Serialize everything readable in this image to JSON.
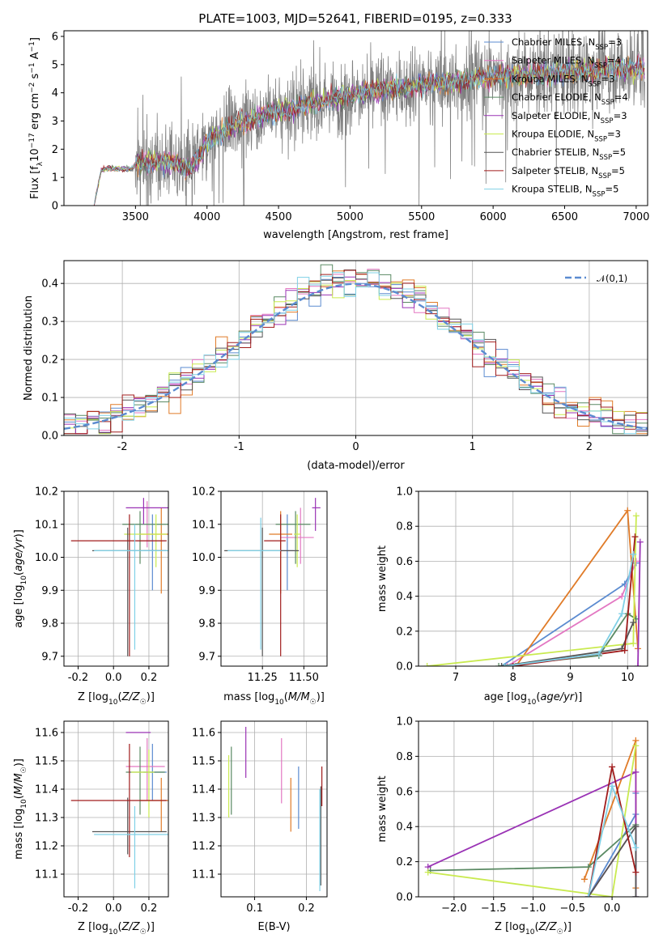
{
  "colors": {
    "c1": "#5b8bd0",
    "c2": "#e377c2",
    "c3": "#e07b28",
    "c4": "#5a8a63",
    "c5": "#9a33b5",
    "c6": "#c9ea4f",
    "c7": "#555555",
    "c8": "#a01c1c",
    "c9": "#7fd0e6",
    "grey": "#808080"
  },
  "chart_data": [
    {
      "id": "spectrum",
      "type": "line",
      "title": "PLATE=1003, MJD=52641, FIBERID=0195, z=0.333",
      "xlabel": "wavelength [Angstrom, rest frame]",
      "ylabel": "Flux [f_λ10^-17 erg cm^-2 s^-1 A^-1]",
      "xlim": [
        3000,
        7080
      ],
      "ylim": [
        0,
        6.2
      ],
      "xticks": [
        3500,
        4000,
        4500,
        5000,
        5500,
        6000,
        6500,
        7000
      ],
      "yticks": [
        0,
        1,
        2,
        3,
        4,
        5,
        6
      ],
      "grid": false,
      "legend_position": "upper right",
      "legend": [
        {
          "color": "c1",
          "text": "Chabrier MILES, N",
          "sub": "SSP",
          "rest": "=3"
        },
        {
          "color": "c2",
          "text": "Salpeter MILES, N",
          "sub": "SSP",
          "rest": "=4"
        },
        {
          "color": "c3",
          "text": "Kroupa MILES, N",
          "sub": "SSP",
          "rest": "=3"
        },
        {
          "color": "c4",
          "text": "Chabrier ELODIE, N",
          "sub": "SSP",
          "rest": "=4"
        },
        {
          "color": "c5",
          "text": "Salpeter ELODIE, N",
          "sub": "SSP",
          "rest": "=3"
        },
        {
          "color": "c6",
          "text": "Kroupa ELODIE, N",
          "sub": "SSP",
          "rest": "=3"
        },
        {
          "color": "c7",
          "text": "Chabrier STELIB, N",
          "sub": "SSP",
          "rest": "=5"
        },
        {
          "color": "c8",
          "text": "Salpeter STELIB, N",
          "sub": "SSP",
          "rest": "=5"
        },
        {
          "color": "c9",
          "text": "Kroupa STELIB, N",
          "sub": "SSP",
          "rest": "=5"
        }
      ],
      "data_continuum": {
        "x": [
          3210,
          3260,
          3300,
          3400,
          3480,
          3500,
          3600,
          3700,
          3800,
          3850,
          3900,
          3950,
          4000,
          4100,
          4200,
          4300,
          4400,
          4500,
          4600,
          4700,
          4800,
          4900,
          5000,
          5100,
          5200,
          5300,
          5400,
          5500,
          5600,
          5700,
          5800,
          5900,
          6000,
          6100,
          6200,
          6300,
          6400,
          6500,
          6600,
          6700,
          6800,
          6900,
          7000,
          7060
        ],
        "y": [
          0,
          1.25,
          1.3,
          1.3,
          1.3,
          1.5,
          1.55,
          1.55,
          1.5,
          1.3,
          1.4,
          1.8,
          2.3,
          2.6,
          2.85,
          3.05,
          3.2,
          3.35,
          3.45,
          3.6,
          3.7,
          3.8,
          3.9,
          4.0,
          4.1,
          4.15,
          4.2,
          4.3,
          4.35,
          4.4,
          4.45,
          4.5,
          4.55,
          4.6,
          4.6,
          4.65,
          4.7,
          4.75,
          4.8,
          4.8,
          4.85,
          4.9,
          4.9,
          4.9
        ]
      },
      "data_noise_start": 3500,
      "models_shown_from": 3210
    },
    {
      "id": "residuals",
      "type": "histogram",
      "xlabel": "(data-model)/error",
      "ylabel": "Normed distribution",
      "xlim": [
        -2.5,
        2.5
      ],
      "ylim": [
        0,
        0.46
      ],
      "xticks": [
        -2,
        -1,
        0,
        1,
        2
      ],
      "yticks": [
        0.0,
        0.1,
        0.2,
        0.3,
        0.4
      ],
      "grid": true,
      "legend_position": "upper right",
      "reference_curve": {
        "label": "𝒩(0,1)",
        "mean": 0,
        "sigma": 1
      },
      "bins": 50
    },
    {
      "id": "age_vs_Z",
      "type": "errorbar",
      "xlabel": "Z [log10(Z/Z_sun)]",
      "ylabel": "age [log10(age/yr)]",
      "xlim": [
        -0.28,
        0.31
      ],
      "ylim": [
        9.67,
        10.2
      ],
      "xticks": [
        -0.2,
        0.0,
        0.2
      ],
      "yticks": [
        9.7,
        9.8,
        9.9,
        10.0,
        10.1,
        10.2
      ],
      "grid": true,
      "points": [
        {
          "c": "c1",
          "x": 0.22,
          "y": 10.02,
          "xerr": [
            0.05,
            0.08
          ],
          "yerr": [
            0.12,
            0.11
          ]
        },
        {
          "c": "c2",
          "x": 0.19,
          "y": 10.05,
          "xerr": [
            0.06,
            0.1
          ],
          "yerr": [
            0.02,
            0.12
          ]
        },
        {
          "c": "c3",
          "x": 0.27,
          "y": 10.07,
          "xerr": [
            0.12,
            0.04
          ],
          "yerr": [
            0.18,
            0.08
          ]
        },
        {
          "c": "c4",
          "x": 0.15,
          "y": 10.1,
          "xerr": [
            0.1,
            0.16
          ],
          "yerr": [
            0.12,
            0.04
          ]
        },
        {
          "c": "c5",
          "x": 0.17,
          "y": 10.15,
          "xerr": [
            0.1,
            0.15
          ],
          "yerr": [
            0.05,
            0.03
          ]
        },
        {
          "c": "c6",
          "x": 0.24,
          "y": 10.07,
          "xerr": [
            0.18,
            0.06
          ],
          "yerr": [
            0.1,
            0.06
          ]
        },
        {
          "c": "c7",
          "x": 0.08,
          "y": 10.02,
          "xerr": [
            0.2,
            0.22
          ],
          "yerr": [
            0.32,
            0.07
          ]
        },
        {
          "c": "c8",
          "x": 0.09,
          "y": 10.05,
          "xerr": [
            0.33,
            0.21
          ],
          "yerr": [
            0.35,
            0.08
          ]
        },
        {
          "c": "c9",
          "x": 0.12,
          "y": 10.02,
          "xerr": [
            0.23,
            0.2
          ],
          "yerr": [
            0.3,
            0.08
          ]
        }
      ]
    },
    {
      "id": "age_vs_mass",
      "type": "errorbar",
      "xlabel": "mass [log10(M/M_sun)]",
      "xlim": [
        11.0,
        11.64
      ],
      "ylim": [
        9.67,
        10.2
      ],
      "xticks": [
        11.25,
        11.5
      ],
      "yticks": [
        9.7,
        9.8,
        9.9,
        10.0,
        10.1,
        10.2
      ],
      "grid": true,
      "points": [
        {
          "c": "c1",
          "x": 11.4,
          "y": 10.02,
          "xerr": [
            0.04,
            0.04
          ],
          "yerr": [
            0.12,
            0.11
          ]
        },
        {
          "c": "c2",
          "x": 11.48,
          "y": 10.06,
          "xerr": [
            0.12,
            0.08
          ],
          "yerr": [
            0.08,
            0.09
          ]
        },
        {
          "c": "c3",
          "x": 11.36,
          "y": 10.07,
          "xerr": [
            0.07,
            0.07
          ],
          "yerr": [
            0.18,
            0.07
          ]
        },
        {
          "c": "c4",
          "x": 11.45,
          "y": 10.1,
          "xerr": [
            0.12,
            0.09
          ],
          "yerr": [
            0.12,
            0.04
          ]
        },
        {
          "c": "c5",
          "x": 11.57,
          "y": 10.15,
          "xerr": [
            0.02,
            0.03
          ],
          "yerr": [
            0.07,
            0.03
          ]
        },
        {
          "c": "c6",
          "x": 11.46,
          "y": 10.07,
          "xerr": [
            0.02,
            0.02
          ],
          "yerr": [
            0.1,
            0.06
          ]
        },
        {
          "c": "c7",
          "x": 11.25,
          "y": 10.02,
          "xerr": [
            0.23,
            0.22
          ],
          "yerr": [
            0.32,
            0.07
          ]
        },
        {
          "c": "c8",
          "x": 11.36,
          "y": 10.05,
          "xerr": [
            0.1,
            0.03
          ],
          "yerr": [
            0.35,
            0.08
          ]
        },
        {
          "c": "c9",
          "x": 11.24,
          "y": 10.02,
          "xerr": [
            0.2,
            0.12
          ],
          "yerr": [
            0.3,
            0.1
          ]
        }
      ]
    },
    {
      "id": "mass_weight_vs_age",
      "type": "line",
      "xlabel": "age [log10(age/yr)]",
      "ylabel": "mass weight",
      "xlim": [
        6.35,
        10.35
      ],
      "ylim": [
        0,
        1.0
      ],
      "xticks": [
        7,
        8,
        9,
        10
      ],
      "yticks": [
        0.0,
        0.2,
        0.4,
        0.6,
        0.8,
        1.0
      ],
      "grid": true,
      "series": [
        {
          "c": "c1",
          "x": [
            7.8,
            9.95,
            10.15
          ],
          "y": [
            0.0,
            0.47,
            0.59
          ]
        },
        {
          "c": "c2",
          "x": [
            7.9,
            9.9,
            10.15
          ],
          "y": [
            0.0,
            0.4,
            0.6
          ]
        },
        {
          "c": "c3",
          "x": [
            8.05,
            10.0,
            10.18
          ],
          "y": [
            0.0,
            0.89,
            0.1
          ]
        },
        {
          "c": "c4",
          "x": [
            7.75,
            9.5,
            10.0,
            10.15
          ],
          "y": [
            0.0,
            0.06,
            0.3,
            0.27
          ]
        },
        {
          "c": "c5",
          "x": [
            10.18,
            10.22
          ],
          "y": [
            0.0,
            0.71
          ]
        },
        {
          "c": "c6",
          "x": [
            6.5,
            10.1,
            10.15
          ],
          "y": [
            0.0,
            0.13,
            0.86
          ]
        },
        {
          "c": "c7",
          "x": [
            7.8,
            9.9,
            10.1
          ],
          "y": [
            0.0,
            0.1,
            0.25
          ]
        },
        {
          "c": "c8",
          "x": [
            8.0,
            9.95,
            10.13
          ],
          "y": [
            0.0,
            0.09,
            0.74
          ]
        },
        {
          "c": "c9",
          "x": [
            7.85,
            9.5,
            9.9,
            10.1
          ],
          "y": [
            0.0,
            0.07,
            0.3,
            0.64
          ]
        }
      ]
    },
    {
      "id": "mass_vs_Z",
      "type": "errorbar",
      "xlabel": "Z [log10(Z/Z_sun)]",
      "ylabel": "mass [log10(M/M_sun)]",
      "xlim": [
        -0.28,
        0.31
      ],
      "ylim": [
        11.02,
        11.64
      ],
      "xticks": [
        -0.2,
        0.0,
        0.2
      ],
      "yticks": [
        11.1,
        11.2,
        11.3,
        11.4,
        11.5,
        11.6
      ],
      "grid": true,
      "points": [
        {
          "c": "c1",
          "x": 0.22,
          "y": 11.46,
          "xerr": [
            0.05,
            0.08
          ],
          "yerr": [
            0.1,
            0.1
          ]
        },
        {
          "c": "c2",
          "x": 0.19,
          "y": 11.48,
          "xerr": [
            0.12,
            0.1
          ],
          "yerr": [
            0.12,
            0.1
          ]
        },
        {
          "c": "c3",
          "x": 0.27,
          "y": 11.36,
          "xerr": [
            0.12,
            0.04
          ],
          "yerr": [
            0.11,
            0.08
          ]
        },
        {
          "c": "c4",
          "x": 0.15,
          "y": 11.46,
          "xerr": [
            0.08,
            0.14
          ],
          "yerr": [
            0.15,
            0.09
          ]
        },
        {
          "c": "c5",
          "x": 0.17,
          "y": 11.6,
          "xerr": [
            0.1,
            0.04
          ],
          "yerr": [
            0.0,
            0.0
          ]
        },
        {
          "c": "c6",
          "x": 0.2,
          "y": 11.46,
          "xerr": [
            0.1,
            0.03
          ],
          "yerr": [
            0.16,
            0.08
          ]
        },
        {
          "c": "c7",
          "x": 0.08,
          "y": 11.25,
          "xerr": [
            0.2,
            0.22
          ],
          "yerr": [
            0.08,
            0.12
          ]
        },
        {
          "c": "c8",
          "x": 0.09,
          "y": 11.36,
          "xerr": [
            0.33,
            0.21
          ],
          "yerr": [
            0.2,
            0.2
          ]
        },
        {
          "c": "c9",
          "x": 0.12,
          "y": 11.24,
          "xerr": [
            0.23,
            0.19
          ],
          "yerr": [
            0.19,
            0.1
          ]
        }
      ]
    },
    {
      "id": "mass_vs_EBV",
      "type": "errorbar",
      "xlabel": "E(B-V)",
      "xlim": [
        0.035,
        0.24
      ],
      "ylim": [
        11.02,
        11.64
      ],
      "xticks": [
        0.1,
        0.2
      ],
      "yticks": [
        11.1,
        11.2,
        11.3,
        11.4,
        11.5,
        11.6
      ],
      "grid": true,
      "points": [
        {
          "c": "c1",
          "x": 0.185,
          "y": 11.37,
          "yerr": [
            0.11,
            0.11
          ]
        },
        {
          "c": "c2",
          "x": 0.152,
          "y": 11.47,
          "yerr": [
            0.12,
            0.11
          ]
        },
        {
          "c": "c3",
          "x": 0.17,
          "y": 11.35,
          "yerr": [
            0.1,
            0.09
          ]
        },
        {
          "c": "c4",
          "x": 0.055,
          "y": 11.43,
          "yerr": [
            0.12,
            0.12
          ]
        },
        {
          "c": "c5",
          "x": 0.083,
          "y": 11.53,
          "yerr": [
            0.09,
            0.09
          ]
        },
        {
          "c": "c6",
          "x": 0.05,
          "y": 11.4,
          "yerr": [
            0.1,
            0.12
          ]
        },
        {
          "c": "c7",
          "x": 0.228,
          "y": 11.21,
          "yerr": [
            0.15,
            0.2
          ]
        },
        {
          "c": "c8",
          "x": 0.23,
          "y": 11.38,
          "yerr": [
            0.04,
            0.1
          ]
        },
        {
          "c": "c9",
          "x": 0.226,
          "y": 11.22,
          "yerr": [
            0.18,
            0.18
          ]
        }
      ]
    },
    {
      "id": "mass_weight_vs_Z",
      "type": "line",
      "xlabel": "Z [log10(Z/Z_sun)]",
      "ylabel": "mass weight",
      "xlim": [
        -2.45,
        0.45
      ],
      "ylim": [
        0,
        1.0
      ],
      "xticks": [
        -2.0,
        -1.5,
        -1.0,
        -0.5,
        0.0
      ],
      "grid": true,
      "series": [
        {
          "c": "c1",
          "x": [
            -0.3,
            0.3,
            0.3
          ],
          "y": [
            0.0,
            0.47,
            0.59
          ]
        },
        {
          "c": "c2",
          "x": [
            -0.3,
            0.3,
            0.3
          ],
          "y": [
            0.0,
            0.4,
            0.6
          ]
        },
        {
          "c": "c3",
          "x": [
            -0.35,
            0.3,
            0.3
          ],
          "y": [
            0.1,
            0.89,
            0.05
          ]
        },
        {
          "c": "c4",
          "x": [
            -2.3,
            -0.3,
            0.3,
            0.3
          ],
          "y": [
            0.15,
            0.17,
            0.41,
            0.0
          ]
        },
        {
          "c": "c5",
          "x": [
            -2.33,
            0.3,
            0.3
          ],
          "y": [
            0.17,
            0.71,
            0.0
          ]
        },
        {
          "c": "c6",
          "x": [
            -2.33,
            0.0,
            0.3
          ],
          "y": [
            0.14,
            0.0,
            0.86
          ]
        },
        {
          "c": "c7",
          "x": [
            -0.3,
            0.3,
            0.3
          ],
          "y": [
            0.0,
            0.4,
            0.0
          ]
        },
        {
          "c": "c8",
          "x": [
            -0.3,
            0.0,
            0.3
          ],
          "y": [
            0.0,
            0.74,
            0.14
          ]
        },
        {
          "c": "c9",
          "x": [
            -0.3,
            0.0,
            0.3
          ],
          "y": [
            0.0,
            0.63,
            0.28
          ]
        }
      ]
    }
  ]
}
